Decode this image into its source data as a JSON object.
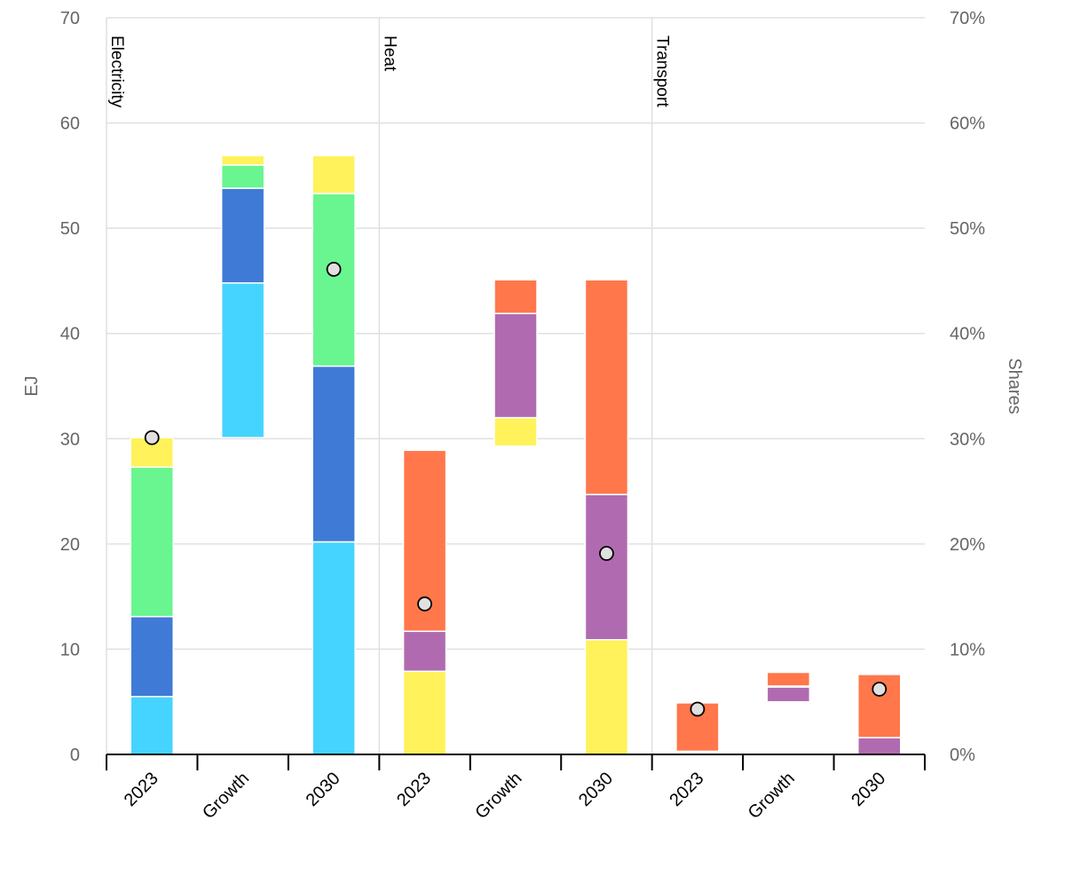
{
  "chart_data": {
    "type": "bar",
    "stacked": true,
    "ylabel": "EJ",
    "y2label": "Shares",
    "ylim": [
      0,
      70
    ],
    "y2lim": [
      0,
      70
    ],
    "yticks": [
      "0",
      "10",
      "20",
      "30",
      "40",
      "50",
      "60",
      "70"
    ],
    "y2ticks": [
      "0%",
      "10%",
      "20%",
      "30%",
      "40%",
      "50%",
      "60%",
      "70%"
    ],
    "grid": true,
    "legend": "none",
    "colors": {
      "cyan": "#45d4ff",
      "blue": "#3f7ad6",
      "green": "#69f58f",
      "yellow": "#fff25a",
      "orange": "#ff774b",
      "purple": "#b06bb0",
      "marker": "#e0e0e0"
    },
    "groups": [
      {
        "name": "Electricity",
        "bars": [
          {
            "label": "2023",
            "share": 30.1,
            "segments": [
              {
                "from": 0,
                "to": 5.5,
                "color": "cyan"
              },
              {
                "from": 5.5,
                "to": 13.1,
                "color": "blue"
              },
              {
                "from": 13.1,
                "to": 27.3,
                "color": "green"
              },
              {
                "from": 27.3,
                "to": 30.1,
                "color": "yellow"
              }
            ]
          },
          {
            "label": "Growth",
            "share": null,
            "segments": [
              {
                "from": 30.1,
                "to": 44.8,
                "color": "cyan"
              },
              {
                "from": 44.8,
                "to": 53.8,
                "color": "blue"
              },
              {
                "from": 53.8,
                "to": 56.0,
                "color": "green"
              },
              {
                "from": 56.0,
                "to": 56.9,
                "color": "yellow"
              }
            ]
          },
          {
            "label": "2030",
            "share": 46.1,
            "segments": [
              {
                "from": 0,
                "to": 20.2,
                "color": "cyan"
              },
              {
                "from": 20.2,
                "to": 36.9,
                "color": "blue"
              },
              {
                "from": 36.9,
                "to": 53.3,
                "color": "green"
              },
              {
                "from": 53.3,
                "to": 56.9,
                "color": "yellow"
              }
            ]
          }
        ]
      },
      {
        "name": "Heat",
        "bars": [
          {
            "label": "2023",
            "share": 14.3,
            "segments": [
              {
                "from": 0,
                "to": 7.9,
                "color": "yellow"
              },
              {
                "from": 7.9,
                "to": 11.7,
                "color": "purple"
              },
              {
                "from": 11.7,
                "to": 28.9,
                "color": "orange"
              }
            ]
          },
          {
            "label": "Growth",
            "share": null,
            "segments": [
              {
                "from": 29.3,
                "to": 32.0,
                "color": "yellow"
              },
              {
                "from": 32.0,
                "to": 41.9,
                "color": "purple"
              },
              {
                "from": 41.9,
                "to": 45.1,
                "color": "orange"
              }
            ]
          },
          {
            "label": "2030",
            "share": 19.1,
            "segments": [
              {
                "from": 0,
                "to": 10.9,
                "color": "yellow"
              },
              {
                "from": 10.9,
                "to": 24.7,
                "color": "purple"
              },
              {
                "from": 24.7,
                "to": 45.1,
                "color": "orange"
              }
            ]
          }
        ]
      },
      {
        "name": "Transport",
        "bars": [
          {
            "label": "2023",
            "share": 4.3,
            "segments": [
              {
                "from": 0.3,
                "to": 4.9,
                "color": "orange"
              }
            ]
          },
          {
            "label": "Growth",
            "share": null,
            "segments": [
              {
                "from": 5.0,
                "to": 6.4,
                "color": "purple"
              },
              {
                "from": 6.5,
                "to": 7.8,
                "color": "orange"
              }
            ]
          },
          {
            "label": "2030",
            "share": 6.2,
            "segments": [
              {
                "from": 0,
                "to": 1.6,
                "color": "purple"
              },
              {
                "from": 1.6,
                "to": 7.6,
                "color": "orange"
              }
            ]
          }
        ]
      }
    ]
  }
}
